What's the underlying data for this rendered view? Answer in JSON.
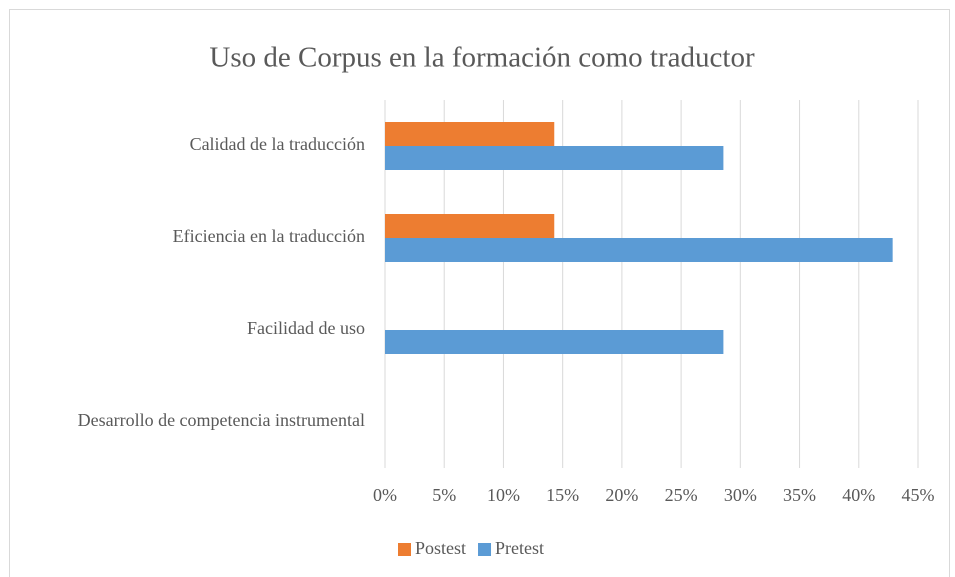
{
  "chart_data": {
    "type": "bar",
    "orientation": "horizontal",
    "title": "Uso de Corpus en la formación como traductor",
    "categories": [
      "Calidad de la traducción",
      "Eficiencia en la traducción",
      "Facilidad de uso",
      "Desarrollo de competencia instrumental"
    ],
    "series": [
      {
        "name": "Postest",
        "color": "#ed7d31",
        "values": [
          14.29,
          14.29,
          0,
          0
        ]
      },
      {
        "name": "Pretest",
        "color": "#5b9bd5",
        "values": [
          28.57,
          42.86,
          28.57,
          0
        ]
      }
    ],
    "xlim": [
      0,
      45
    ],
    "xticks": [
      {
        "value": 0,
        "label": "0%"
      },
      {
        "value": 5,
        "label": "5%"
      },
      {
        "value": 10,
        "label": "10%"
      },
      {
        "value": 15,
        "label": "15%"
      },
      {
        "value": 20,
        "label": "20%"
      },
      {
        "value": 25,
        "label": "25%"
      },
      {
        "value": 30,
        "label": "30%"
      },
      {
        "value": 35,
        "label": "35%"
      },
      {
        "value": 40,
        "label": "40%"
      },
      {
        "value": 45,
        "label": "45%"
      }
    ],
    "grid": true,
    "legend": "bottom"
  }
}
